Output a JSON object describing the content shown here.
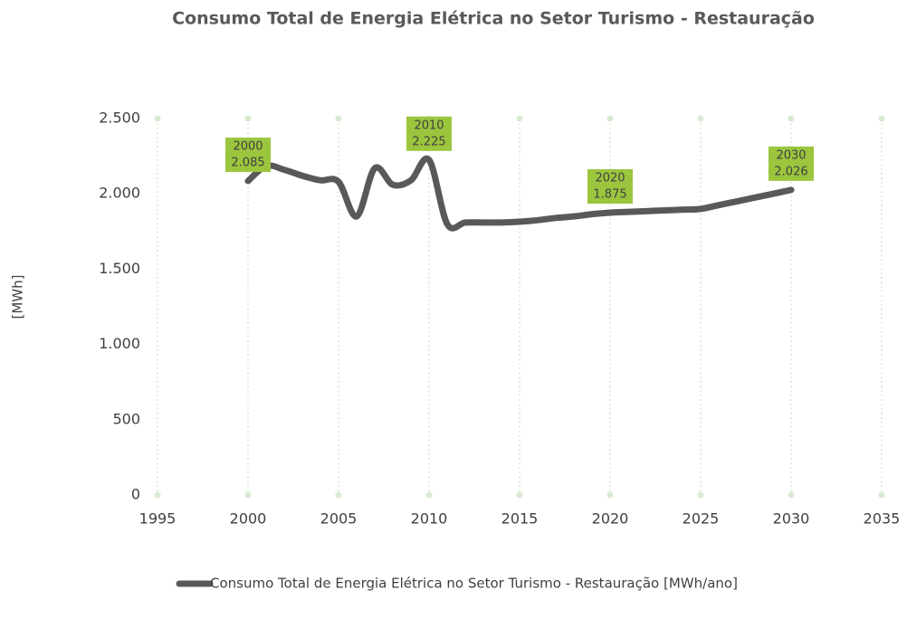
{
  "chart_data": {
    "type": "line",
    "title": "Consumo Total de Energia Elétrica no Setor Turismo - Restauração",
    "y_label": "[MWh]",
    "x": [
      2000,
      2001,
      2002,
      2003,
      2004,
      2005,
      2006,
      2007,
      2008,
      2009,
      2010,
      2011,
      2012,
      2013,
      2014,
      2015,
      2016,
      2017,
      2018,
      2019,
      2020,
      2021,
      2022,
      2023,
      2024,
      2025,
      2026,
      2027,
      2028,
      2029,
      2030
    ],
    "series": [
      {
        "name": "Consumo Total de Energia Elétrica no Setor Turismo - Restauração [MWh/ano]",
        "color": "#595959",
        "values": [
          2085,
          2185,
          2160,
          2120,
          2090,
          2080,
          1850,
          2170,
          2060,
          2090,
          2225,
          1800,
          1810,
          1810,
          1810,
          1815,
          1825,
          1840,
          1850,
          1865,
          1875,
          1880,
          1885,
          1890,
          1895,
          1900,
          1925,
          1950,
          1975,
          2000,
          2026
        ],
        "value_labels": [
          "2.085",
          null,
          null,
          null,
          null,
          null,
          null,
          null,
          null,
          null,
          "2.225",
          null,
          null,
          null,
          null,
          null,
          null,
          null,
          null,
          null,
          "1.875",
          null,
          null,
          null,
          null,
          null,
          null,
          null,
          null,
          null,
          "2.026"
        ]
      }
    ],
    "label_color": "#9bc53d",
    "grid_color": "#d9ead3",
    "xlim": [
      1995,
      2035
    ],
    "xticks": [
      1995,
      2000,
      2005,
      2010,
      2015,
      2020,
      2025,
      2030,
      2035
    ],
    "ylim": [
      0,
      2500
    ],
    "yticks": [
      0,
      500,
      {
        "value": 1000,
        "label": "1.000"
      },
      {
        "value": 1500,
        "label": "1.500"
      },
      {
        "value": 2000,
        "label": "2.000"
      },
      {
        "value": 2500,
        "label": "2.500"
      }
    ],
    "grid": true
  }
}
